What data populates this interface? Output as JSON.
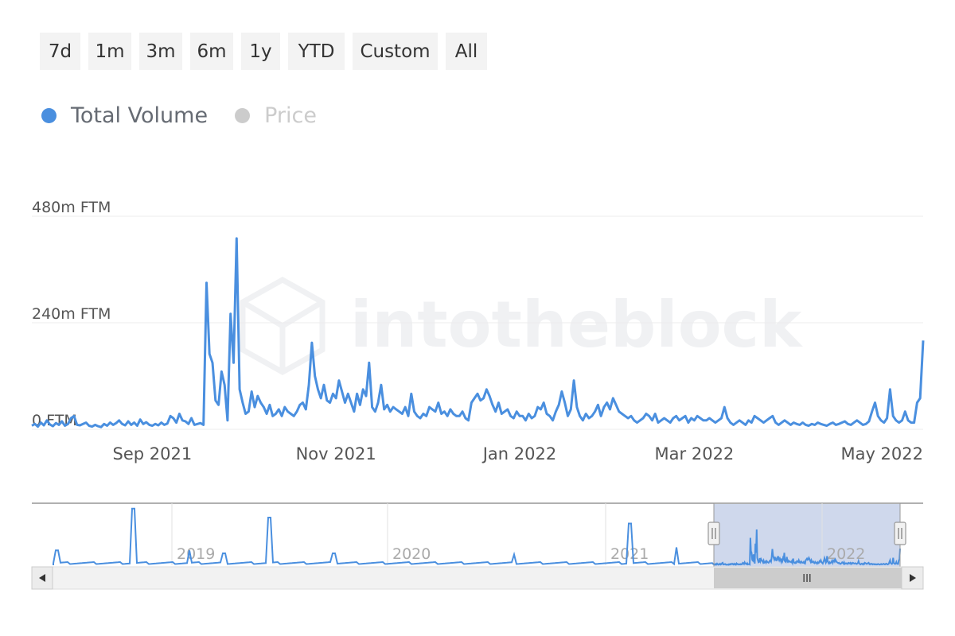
{
  "range_buttons": [
    "7d",
    "1m",
    "3m",
    "6m",
    "1y",
    "YTD",
    "Custom",
    "All"
  ],
  "legend": [
    {
      "label": "Total Volume",
      "color": "#4a8fdf",
      "active": true
    },
    {
      "label": "Price",
      "color": "#cccccc",
      "active": false
    }
  ],
  "watermark": "intotheblock",
  "navigator": {
    "year_labels": [
      "2019",
      "2020",
      "2021",
      "2022"
    ],
    "scroll_grip": "III"
  },
  "chart_data": {
    "type": "line",
    "y_unit": "FTM",
    "y_tick_labels": [
      "0 FTM",
      "240m FTM",
      "480m FTM"
    ],
    "y_ticks": [
      0,
      240,
      480
    ],
    "ylim": [
      0,
      480
    ],
    "x_tick_labels": [
      "Sep 2021",
      "Nov 2021",
      "Jan 2022",
      "Mar 2022",
      "May 2022"
    ],
    "x_tick_index": [
      40,
      101,
      162,
      220,
      279
    ],
    "grid": true,
    "series": [
      {
        "name": "Total Volume",
        "color": "#4a8fdf",
        "unit": "million FTM",
        "values": [
          8,
          12,
          6,
          15,
          9,
          20,
          11,
          7,
          14,
          10,
          18,
          8,
          12,
          25,
          30,
          10,
          9,
          12,
          15,
          8,
          6,
          10,
          7,
          5,
          12,
          8,
          15,
          10,
          14,
          20,
          12,
          9,
          18,
          10,
          15,
          8,
          22,
          12,
          16,
          10,
          8,
          12,
          9,
          15,
          10,
          13,
          30,
          25,
          15,
          35,
          20,
          18,
          12,
          25,
          10,
          12,
          14,
          10,
          330,
          170,
          150,
          65,
          55,
          130,
          100,
          20,
          260,
          150,
          430,
          90,
          60,
          35,
          40,
          85,
          50,
          75,
          60,
          50,
          35,
          55,
          30,
          35,
          45,
          30,
          50,
          40,
          35,
          30,
          40,
          55,
          60,
          45,
          100,
          195,
          120,
          90,
          70,
          100,
          65,
          60,
          80,
          70,
          110,
          85,
          60,
          80,
          60,
          40,
          80,
          55,
          90,
          75,
          150,
          50,
          40,
          60,
          100,
          45,
          55,
          40,
          50,
          45,
          40,
          35,
          50,
          30,
          80,
          40,
          30,
          25,
          35,
          30,
          50,
          45,
          40,
          60,
          35,
          40,
          30,
          45,
          35,
          30,
          30,
          40,
          25,
          20,
          60,
          70,
          80,
          65,
          70,
          90,
          75,
          55,
          40,
          60,
          35,
          40,
          45,
          30,
          25,
          40,
          30,
          30,
          20,
          35,
          25,
          30,
          50,
          45,
          60,
          35,
          30,
          20,
          40,
          55,
          85,
          60,
          30,
          45,
          110,
          50,
          30,
          20,
          35,
          25,
          30,
          40,
          55,
          30,
          50,
          60,
          45,
          70,
          55,
          40,
          35,
          30,
          25,
          30,
          20,
          15,
          20,
          25,
          35,
          30,
          20,
          35,
          15,
          20,
          25,
          20,
          15,
          25,
          30,
          20,
          25,
          30,
          15,
          25,
          20,
          30,
          25,
          20,
          20,
          25,
          20,
          15,
          20,
          25,
          50,
          25,
          15,
          10,
          15,
          20,
          15,
          10,
          20,
          15,
          30,
          25,
          20,
          15,
          20,
          25,
          30,
          15,
          10,
          15,
          20,
          15,
          10,
          15,
          12,
          10,
          15,
          10,
          8,
          12,
          10,
          15,
          12,
          10,
          8,
          12,
          15,
          10,
          12,
          15,
          18,
          12,
          10,
          15,
          20,
          15,
          10,
          12,
          18,
          40,
          60,
          30,
          20,
          15,
          25,
          90,
          30,
          20,
          15,
          20,
          40,
          20,
          15,
          15,
          60,
          70,
          200
        ]
      }
    ]
  }
}
